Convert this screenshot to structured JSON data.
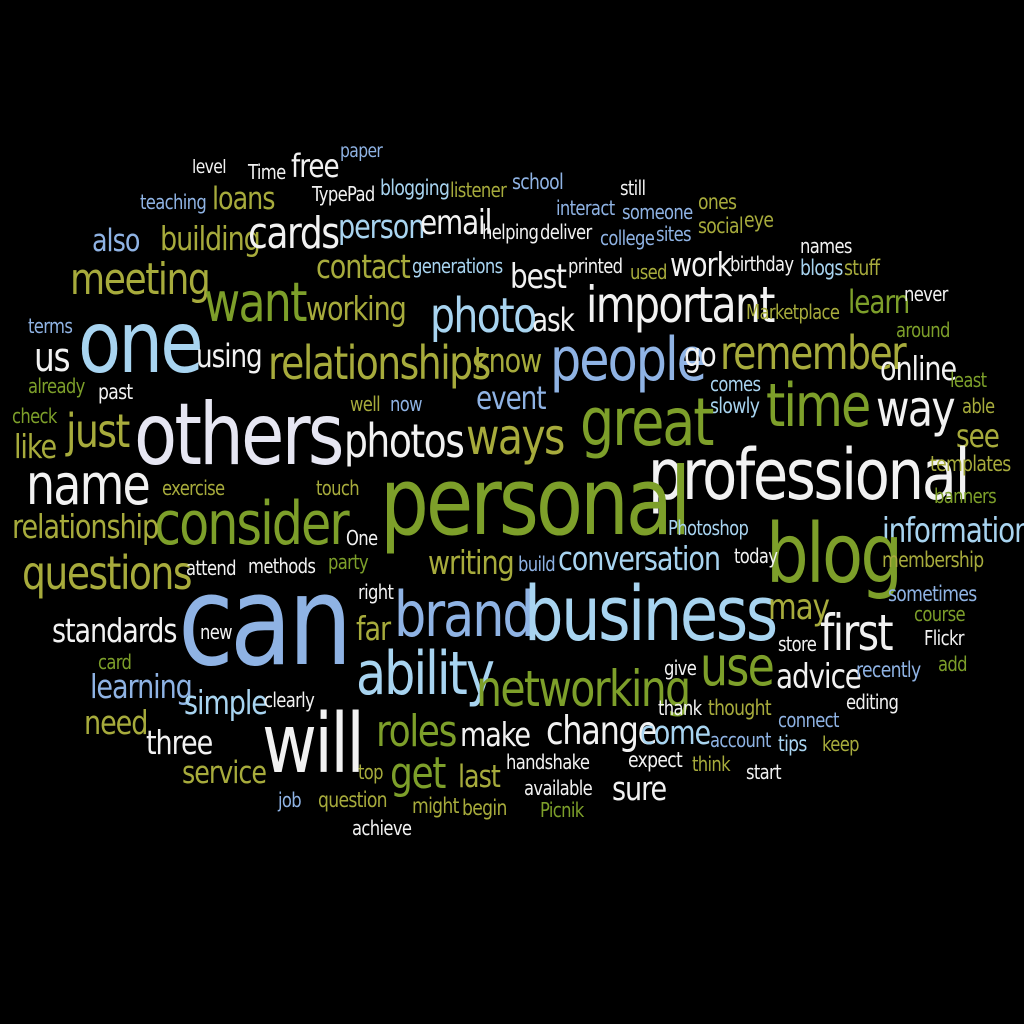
{
  "palette": {
    "white": "#f2f2f2",
    "light_blue": "#a8d4f0",
    "mid_blue": "#8fb3e4",
    "green": "#7d9f2a",
    "olive": "#a7ab3c",
    "background": "#000000"
  },
  "words": [
    {
      "id": "level",
      "text": "level"
    },
    {
      "id": "time-small",
      "text": "Time"
    },
    {
      "id": "free",
      "text": "free"
    },
    {
      "id": "paper",
      "text": "paper"
    },
    {
      "id": "teaching",
      "text": "teaching"
    },
    {
      "id": "loans",
      "text": "loans"
    },
    {
      "id": "typepad",
      "text": "TypePad"
    },
    {
      "id": "blogging",
      "text": "blogging"
    },
    {
      "id": "listener",
      "text": "listener"
    },
    {
      "id": "school",
      "text": "school"
    },
    {
      "id": "still",
      "text": "still"
    },
    {
      "id": "interact",
      "text": "interact"
    },
    {
      "id": "someone",
      "text": "someone"
    },
    {
      "id": "ones",
      "text": "ones"
    },
    {
      "id": "also",
      "text": "also"
    },
    {
      "id": "building",
      "text": "building"
    },
    {
      "id": "cards",
      "text": "cards"
    },
    {
      "id": "person",
      "text": "person"
    },
    {
      "id": "email",
      "text": "email"
    },
    {
      "id": "helping",
      "text": "helping"
    },
    {
      "id": "deliver",
      "text": "deliver"
    },
    {
      "id": "college",
      "text": "college"
    },
    {
      "id": "sites",
      "text": "sites"
    },
    {
      "id": "social",
      "text": "social"
    },
    {
      "id": "eye",
      "text": "eye"
    },
    {
      "id": "names",
      "text": "names"
    },
    {
      "id": "meeting",
      "text": "meeting"
    },
    {
      "id": "contact",
      "text": "contact"
    },
    {
      "id": "generations",
      "text": "generations"
    },
    {
      "id": "best",
      "text": "best"
    },
    {
      "id": "printed",
      "text": "printed"
    },
    {
      "id": "used",
      "text": "used"
    },
    {
      "id": "work",
      "text": "work"
    },
    {
      "id": "birthday",
      "text": "birthday"
    },
    {
      "id": "blogs",
      "text": "blogs"
    },
    {
      "id": "stuff",
      "text": "stuff"
    },
    {
      "id": "want",
      "text": "want"
    },
    {
      "id": "working",
      "text": "working"
    },
    {
      "id": "photo",
      "text": "photo"
    },
    {
      "id": "ask",
      "text": "ask"
    },
    {
      "id": "important",
      "text": "important"
    },
    {
      "id": "marketplace",
      "text": "Marketplace"
    },
    {
      "id": "learn",
      "text": "learn"
    },
    {
      "id": "never",
      "text": "never"
    },
    {
      "id": "terms",
      "text": "terms"
    },
    {
      "id": "one",
      "text": "one"
    },
    {
      "id": "around",
      "text": "around"
    },
    {
      "id": "us",
      "text": "us"
    },
    {
      "id": "using",
      "text": "using"
    },
    {
      "id": "relationships",
      "text": "relationships"
    },
    {
      "id": "know",
      "text": "know"
    },
    {
      "id": "people",
      "text": "people"
    },
    {
      "id": "go",
      "text": "go"
    },
    {
      "id": "remember",
      "text": "remember"
    },
    {
      "id": "online",
      "text": "online"
    },
    {
      "id": "already",
      "text": "already"
    },
    {
      "id": "past",
      "text": "past"
    },
    {
      "id": "event",
      "text": "event"
    },
    {
      "id": "comes",
      "text": "comes"
    },
    {
      "id": "least",
      "text": "least"
    },
    {
      "id": "check",
      "text": "check"
    },
    {
      "id": "well",
      "text": "well"
    },
    {
      "id": "now",
      "text": "now"
    },
    {
      "id": "slowly",
      "text": "slowly"
    },
    {
      "id": "time",
      "text": "time"
    },
    {
      "id": "able",
      "text": "able"
    },
    {
      "id": "way",
      "text": "way"
    },
    {
      "id": "like",
      "text": "like"
    },
    {
      "id": "just",
      "text": "just"
    },
    {
      "id": "others",
      "text": "others"
    },
    {
      "id": "photos",
      "text": "photos"
    },
    {
      "id": "ways",
      "text": "ways"
    },
    {
      "id": "great",
      "text": "great"
    },
    {
      "id": "see",
      "text": "see"
    },
    {
      "id": "name",
      "text": "name"
    },
    {
      "id": "professional",
      "text": "professional"
    },
    {
      "id": "templates",
      "text": "templates"
    },
    {
      "id": "exercise",
      "text": "exercise"
    },
    {
      "id": "touch",
      "text": "touch"
    },
    {
      "id": "personal",
      "text": "personal"
    },
    {
      "id": "banners",
      "text": "banners"
    },
    {
      "id": "consider",
      "text": "consider"
    },
    {
      "id": "relationship",
      "text": "relationship"
    },
    {
      "id": "one-small",
      "text": "One"
    },
    {
      "id": "photoshop",
      "text": "Photoshop"
    },
    {
      "id": "information",
      "text": "information"
    },
    {
      "id": "blog",
      "text": "blog"
    },
    {
      "id": "questions",
      "text": "questions"
    },
    {
      "id": "attend",
      "text": "attend"
    },
    {
      "id": "methods",
      "text": "methods"
    },
    {
      "id": "party",
      "text": "party"
    },
    {
      "id": "writing",
      "text": "writing"
    },
    {
      "id": "build",
      "text": "build"
    },
    {
      "id": "conversation",
      "text": "conversation"
    },
    {
      "id": "today",
      "text": "today"
    },
    {
      "id": "membership",
      "text": "membership"
    },
    {
      "id": "right",
      "text": "right"
    },
    {
      "id": "sometimes",
      "text": "sometimes"
    },
    {
      "id": "can",
      "text": "can"
    },
    {
      "id": "standards",
      "text": "standards"
    },
    {
      "id": "far",
      "text": "far"
    },
    {
      "id": "brand",
      "text": "brand"
    },
    {
      "id": "business",
      "text": "business"
    },
    {
      "id": "may",
      "text": "may"
    },
    {
      "id": "course",
      "text": "course"
    },
    {
      "id": "first",
      "text": "first"
    },
    {
      "id": "new",
      "text": "new"
    },
    {
      "id": "store",
      "text": "store"
    },
    {
      "id": "flickr",
      "text": "Flickr"
    },
    {
      "id": "card",
      "text": "card"
    },
    {
      "id": "ability",
      "text": "ability"
    },
    {
      "id": "use",
      "text": "use"
    },
    {
      "id": "give",
      "text": "give"
    },
    {
      "id": "advice",
      "text": "advice"
    },
    {
      "id": "recently",
      "text": "recently"
    },
    {
      "id": "add",
      "text": "add"
    },
    {
      "id": "learning",
      "text": "learning"
    },
    {
      "id": "networking",
      "text": "networking"
    },
    {
      "id": "simple",
      "text": "simple"
    },
    {
      "id": "clearly",
      "text": "clearly"
    },
    {
      "id": "thank",
      "text": "thank"
    },
    {
      "id": "thought",
      "text": "thought"
    },
    {
      "id": "editing",
      "text": "editing"
    },
    {
      "id": "need",
      "text": "need"
    },
    {
      "id": "roles",
      "text": "roles"
    },
    {
      "id": "connect",
      "text": "connect"
    },
    {
      "id": "will",
      "text": "will"
    },
    {
      "id": "make",
      "text": "make"
    },
    {
      "id": "change",
      "text": "change"
    },
    {
      "id": "come",
      "text": "come"
    },
    {
      "id": "account",
      "text": "account"
    },
    {
      "id": "tips",
      "text": "tips"
    },
    {
      "id": "keep",
      "text": "keep"
    },
    {
      "id": "three",
      "text": "three"
    },
    {
      "id": "handshake",
      "text": "handshake"
    },
    {
      "id": "expect",
      "text": "expect"
    },
    {
      "id": "think",
      "text": "think"
    },
    {
      "id": "start",
      "text": "start"
    },
    {
      "id": "service",
      "text": "service"
    },
    {
      "id": "top",
      "text": "top"
    },
    {
      "id": "get",
      "text": "get"
    },
    {
      "id": "last",
      "text": "last"
    },
    {
      "id": "available",
      "text": "available"
    },
    {
      "id": "sure",
      "text": "sure"
    },
    {
      "id": "job",
      "text": "job"
    },
    {
      "id": "question",
      "text": "question"
    },
    {
      "id": "might",
      "text": "might"
    },
    {
      "id": "begin",
      "text": "begin"
    },
    {
      "id": "picnik",
      "text": "Picnik"
    },
    {
      "id": "achieve",
      "text": "achieve"
    }
  ]
}
